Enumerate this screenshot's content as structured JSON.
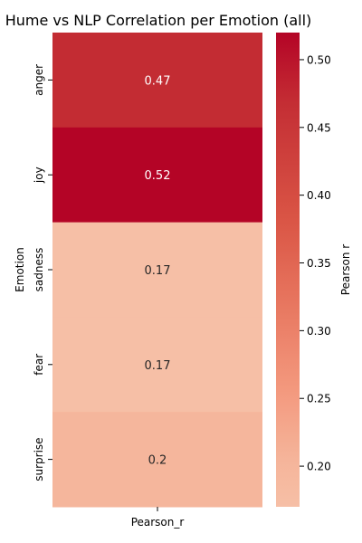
{
  "chart_data": {
    "type": "heatmap",
    "title": "Hume vs NLP Correlation per Emotion (all)",
    "xlabel": "",
    "ylabel": "Emotion",
    "columns": [
      "Pearson_r"
    ],
    "rows": [
      "anger",
      "joy",
      "sadness",
      "fear",
      "surprise"
    ],
    "values": [
      0.47,
      0.52,
      0.17,
      0.17,
      0.2
    ],
    "value_labels": [
      "0.47",
      "0.52",
      "0.17",
      "0.17",
      "0.2"
    ],
    "colorbar": {
      "label": "Pearson r",
      "range": [
        0.17,
        0.52
      ],
      "ticks": [
        0.2,
        0.25,
        0.3,
        0.35,
        0.4,
        0.45,
        0.5
      ],
      "tick_labels": [
        "0.20",
        "0.25",
        "0.30",
        "0.35",
        "0.40",
        "0.45",
        "0.50"
      ]
    },
    "colormap": "coolwarm-red"
  }
}
